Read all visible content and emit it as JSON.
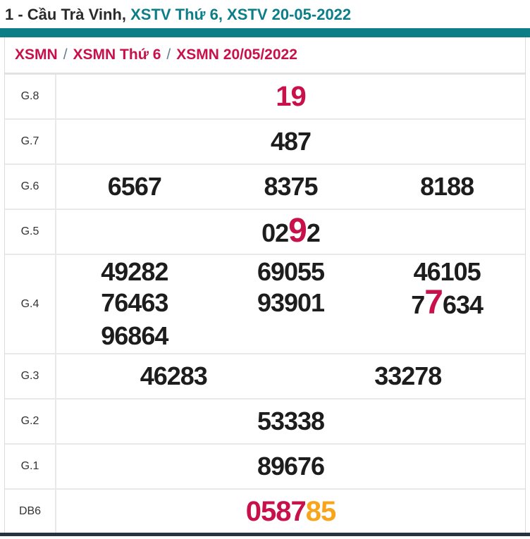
{
  "title": {
    "black": "1 - Cầu Trà Vinh, ",
    "teal": "XSTV Thứ 6, XSTV 20-05-2022"
  },
  "breadcrumb": {
    "separator": "/",
    "items": [
      "XSMN",
      "XSMN Thứ 6",
      "XSMN 20/05/2022"
    ]
  },
  "table": {
    "rows": [
      {
        "label": "G.8",
        "cols": 1,
        "size": "xl",
        "items": [
          [
            {
              "t": "19",
              "c": "red"
            }
          ]
        ]
      },
      {
        "label": "G.7",
        "cols": 1,
        "items": [
          [
            {
              "t": "487"
            }
          ]
        ]
      },
      {
        "label": "G.6",
        "cols": 3,
        "items": [
          [
            {
              "t": "6567"
            }
          ],
          [
            {
              "t": "8375"
            }
          ],
          [
            {
              "t": "8188"
            }
          ]
        ]
      },
      {
        "label": "G.5",
        "cols": 1,
        "items": [
          [
            {
              "t": "02"
            },
            {
              "t": "9",
              "c": "red",
              "big": true
            },
            {
              "t": "2"
            }
          ]
        ]
      },
      {
        "label": "G.4",
        "cols": 3,
        "items": [
          [
            {
              "t": "49282"
            }
          ],
          [
            {
              "t": "69055"
            }
          ],
          [
            {
              "t": "46105"
            }
          ],
          [
            {
              "t": "76463"
            }
          ],
          [
            {
              "t": "93901"
            }
          ],
          [
            {
              "t": "7"
            },
            {
              "t": "7",
              "c": "red",
              "big": true
            },
            {
              "t": "634"
            }
          ],
          [
            {
              "t": "96864"
            }
          ]
        ]
      },
      {
        "label": "G.3",
        "cols": 2,
        "items": [
          [
            {
              "t": "46283"
            }
          ],
          [
            {
              "t": "33278"
            }
          ]
        ]
      },
      {
        "label": "G.2",
        "cols": 1,
        "items": [
          [
            {
              "t": "53338"
            }
          ]
        ]
      },
      {
        "label": "G.1",
        "cols": 1,
        "items": [
          [
            {
              "t": "89676"
            }
          ]
        ]
      },
      {
        "label": "DB6",
        "cols": 1,
        "size": "xl",
        "items": [
          [
            {
              "t": "0587",
              "c": "red"
            },
            {
              "t": "85",
              "c": "orange"
            }
          ]
        ]
      }
    ]
  },
  "colors": {
    "teal": "#0b7e87",
    "red": "#c8114a",
    "orange": "#f9a51b",
    "slash_gray": "#64808f",
    "bottom_bar": "#263442"
  }
}
